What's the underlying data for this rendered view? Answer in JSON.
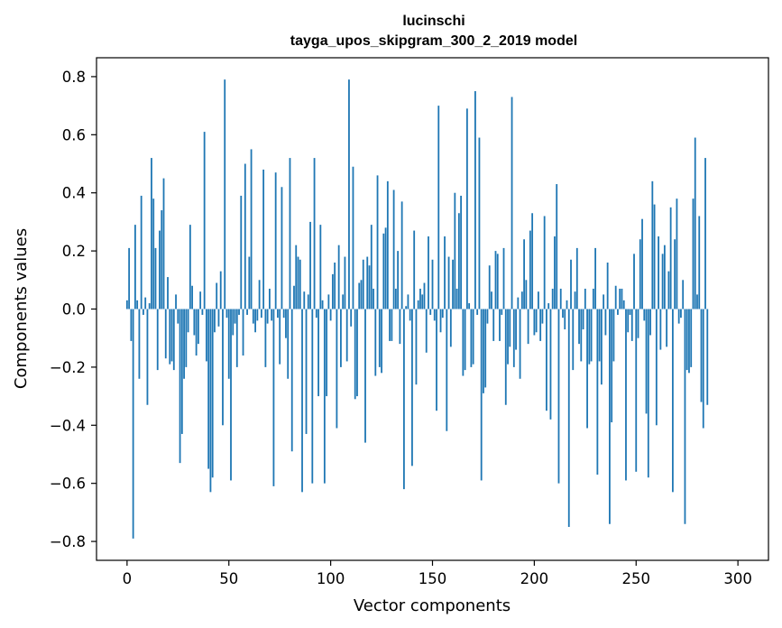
{
  "chart_data": {
    "type": "bar",
    "title": "lucinschi",
    "subtitle": "tayga_upos_skipgram_300_2_2019 model",
    "xlabel": "Vector components",
    "ylabel": "Components values",
    "xlim": [
      -15,
      315
    ],
    "ylim": [
      -0.865,
      0.865
    ],
    "xticks": [
      0,
      50,
      100,
      150,
      200,
      250,
      300
    ],
    "yticks": [
      -0.8,
      -0.6,
      -0.4,
      -0.2,
      0.0,
      0.2,
      0.4,
      0.6,
      0.8
    ],
    "ytick_labels": [
      "−0.8",
      "−0.6",
      "−0.4",
      "−0.2",
      "0.0",
      "0.2",
      "0.4",
      "0.6",
      "0.8"
    ],
    "grid": false,
    "bar_color": "#1f77b4",
    "x_start": 0,
    "values": [
      0.03,
      0.21,
      -0.11,
      -0.79,
      0.29,
      0.03,
      -0.24,
      0.39,
      -0.02,
      0.04,
      -0.33,
      0.02,
      0.52,
      0.38,
      0.21,
      -0.21,
      0.27,
      0.34,
      0.45,
      -0.17,
      0.11,
      -0.19,
      -0.18,
      -0.21,
      0.05,
      -0.05,
      -0.53,
      -0.43,
      -0.24,
      -0.2,
      -0.08,
      0.29,
      0.08,
      -0.09,
      -0.16,
      -0.12,
      0.06,
      -0.02,
      0.61,
      -0.18,
      -0.55,
      -0.63,
      -0.58,
      -0.08,
      0.09,
      -0.06,
      0.13,
      -0.4,
      0.79,
      -0.03,
      -0.24,
      -0.59,
      -0.09,
      -0.05,
      -0.2,
      -0.02,
      0.39,
      -0.16,
      0.5,
      -0.02,
      0.18,
      0.55,
      -0.05,
      -0.08,
      -0.04,
      0.1,
      -0.03,
      0.48,
      -0.2,
      -0.05,
      0.07,
      -0.04,
      -0.61,
      0.47,
      -0.03,
      -0.19,
      0.42,
      -0.03,
      -0.1,
      -0.24,
      0.52,
      -0.49,
      0.08,
      0.22,
      0.18,
      0.17,
      -0.63,
      0.06,
      -0.43,
      0.05,
      0.3,
      -0.6,
      0.52,
      -0.03,
      -0.3,
      0.29,
      0.03,
      -0.6,
      -0.3,
      0.05,
      -0.04,
      0.12,
      0.16,
      -0.41,
      0.22,
      -0.2,
      0.05,
      0.18,
      -0.18,
      0.79,
      -0.06,
      0.49,
      -0.31,
      -0.3,
      0.09,
      0.1,
      0.17,
      -0.46,
      0.18,
      0.15,
      0.29,
      0.07,
      -0.23,
      0.46,
      -0.2,
      -0.22,
      0.26,
      0.28,
      0.44,
      -0.11,
      -0.11,
      0.41,
      0.07,
      0.2,
      -0.12,
      0.37,
      -0.62,
      0.01,
      0.05,
      -0.04,
      -0.54,
      0.27,
      -0.26,
      0.03,
      0.07,
      0.05,
      0.09,
      -0.15,
      0.25,
      -0.02,
      0.17,
      -0.04,
      -0.35,
      0.7,
      -0.08,
      -0.03,
      0.25,
      -0.42,
      0.18,
      -0.13,
      0.17,
      0.4,
      0.07,
      0.33,
      0.39,
      -0.23,
      -0.21,
      0.69,
      0.02,
      -0.2,
      -0.19,
      0.75,
      -0.02,
      0.59,
      -0.59,
      -0.29,
      -0.27,
      -0.05,
      0.15,
      0.06,
      -0.11,
      0.2,
      0.19,
      -0.11,
      -0.02,
      0.21,
      -0.33,
      -0.19,
      -0.13,
      0.73,
      -0.2,
      -0.14,
      0.04,
      -0.24,
      0.06,
      0.24,
      0.1,
      -0.12,
      0.27,
      0.33,
      -0.09,
      -0.08,
      0.06,
      -0.11,
      -0.05,
      0.32,
      -0.35,
      0.02,
      -0.38,
      0.07,
      0.25,
      0.43,
      -0.6,
      0.07,
      -0.03,
      -0.07,
      0.03,
      -0.75,
      0.17,
      -0.21,
      0.06,
      0.21,
      -0.12,
      -0.18,
      -0.07,
      0.07,
      -0.41,
      -0.19,
      -0.18,
      0.07,
      0.21,
      -0.57,
      -0.18,
      -0.26,
      0.05,
      -0.09,
      0.16,
      -0.74,
      -0.39,
      -0.18,
      0.08,
      -0.02,
      0.07,
      0.07,
      0.03,
      -0.59,
      -0.08,
      -0.02,
      -0.11,
      0.19,
      -0.56,
      -0.1,
      0.24,
      0.31,
      -0.04,
      -0.36,
      -0.58,
      -0.09,
      0.44,
      0.36,
      -0.4,
      0.25,
      -0.14,
      0.19,
      0.22,
      -0.13,
      0.13,
      0.35,
      -0.63,
      0.24,
      0.38,
      -0.05,
      -0.03,
      0.1,
      -0.74,
      -0.21,
      -0.22,
      -0.2,
      0.38,
      0.59,
      0.05,
      0.32,
      -0.32,
      -0.41,
      0.52,
      -0.33
    ]
  }
}
